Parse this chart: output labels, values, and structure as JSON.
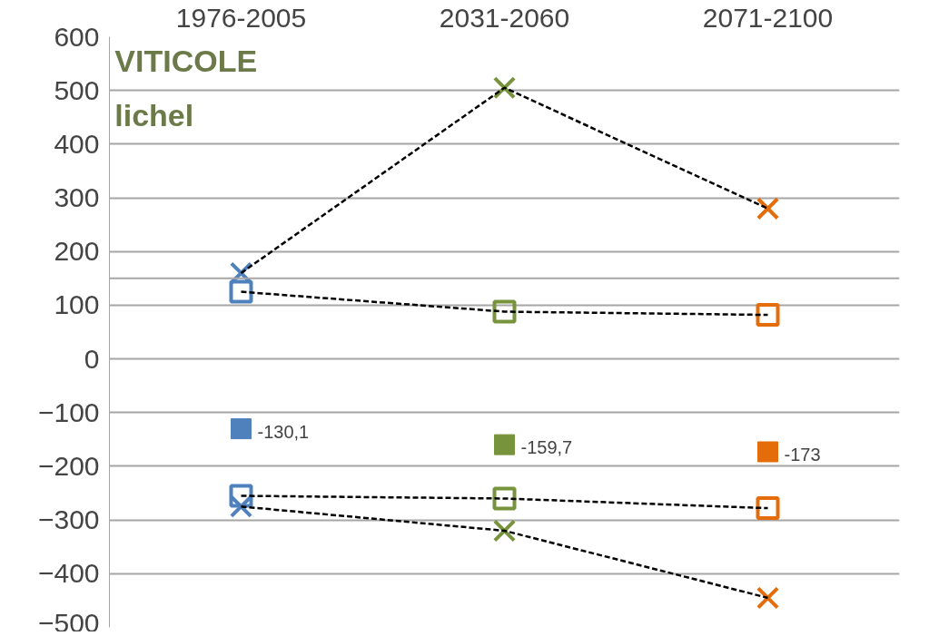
{
  "chart_data": {
    "type": "scatter",
    "categories": [
      "1976-2005",
      "2031-2060",
      "2071-2100"
    ],
    "ylim": [
      -500,
      600
    ],
    "yticks": [
      -500,
      -400,
      -300,
      -200,
      -100,
      0,
      100,
      200,
      300,
      400,
      500,
      600
    ],
    "grid": "y",
    "line_style": "dashed",
    "annotations": [
      "VITICOLE",
      "lichel"
    ],
    "ref_lines": [
      {
        "axis": "y",
        "value": 150,
        "label": null,
        "color": "#a6a6a6"
      }
    ],
    "series": [
      {
        "type": "line",
        "marker": "cross",
        "color": "#000000",
        "colors": [
          "#4f81bd",
          "#77933c",
          "#e46c0a"
        ],
        "values": [
          160,
          505,
          280
        ]
      },
      {
        "type": "line",
        "marker": "cross",
        "color": "#000000",
        "colors": [
          "#4f81bd",
          "#77933c",
          "#e46c0a"
        ],
        "values": [
          -275,
          -320,
          -445
        ]
      },
      {
        "type": "line",
        "marker": "square",
        "color": "#000000",
        "colors": [
          "#4f81bd",
          "#77933c",
          "#e46c0a"
        ],
        "values": [
          125,
          88,
          82
        ]
      },
      {
        "type": "line",
        "marker": "square",
        "color": "#000000",
        "colors": [
          "#4f81bd",
          "#77933c",
          "#e46c0a"
        ],
        "values": [
          -255,
          -260,
          -278
        ]
      },
      {
        "marker": "square",
        "colors": [
          "#4f81bd",
          "#77933c",
          "#e46c0a"
        ],
        "values": [
          -130.1,
          -159.7,
          -173
        ],
        "value_labels": [
          "-130,1",
          "-159,7",
          "-173"
        ]
      }
    ]
  }
}
